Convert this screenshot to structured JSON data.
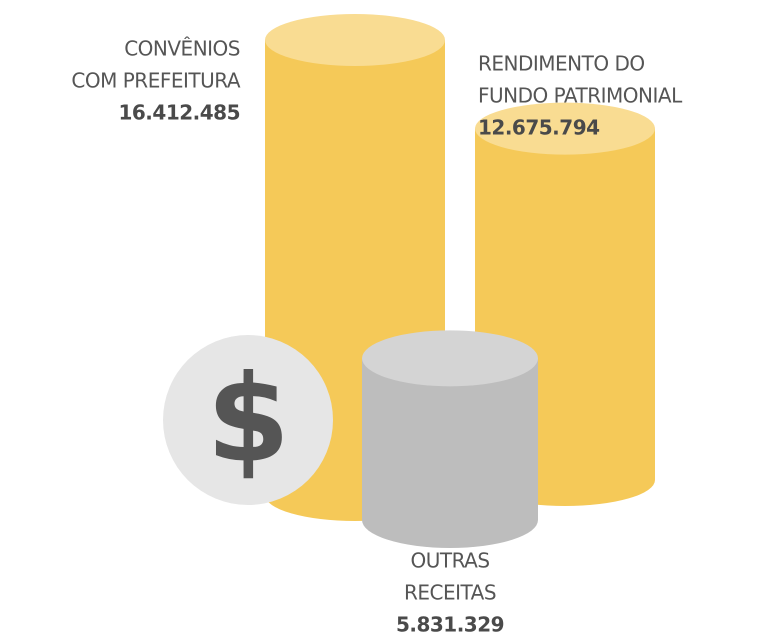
{
  "chart_data": {
    "type": "bar",
    "categories": [
      [
        "CONVÊNIOS",
        "COM PREFEITURA"
      ],
      [
        "RENDIMENTO DO",
        "FUNDO PATRIMONIAL"
      ],
      [
        "OUTRAS",
        "RECEITAS"
      ]
    ],
    "values": [
      16412485,
      12675794,
      5831329
    ],
    "value_labels": [
      "16.412.485",
      "12.675.794",
      "5.831.329"
    ],
    "colors": [
      "#f5c958",
      "#f5c958",
      "#bdbdbd"
    ],
    "icon": "$"
  }
}
